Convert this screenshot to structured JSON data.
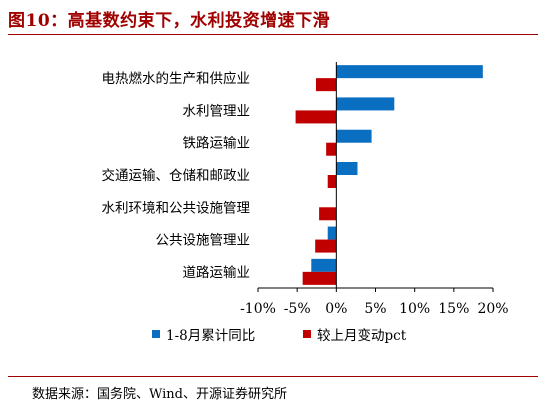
{
  "figure": {
    "title": "图10：高基数约束下，水利投资增速下滑",
    "source": "数据来源：国务院、Wind、开源证券研究所"
  },
  "colors": {
    "series1": "#0b6fc1",
    "series2": "#c00000",
    "axis": "#000000"
  },
  "chart_data": {
    "type": "bar",
    "orientation": "horizontal",
    "categories": [
      "电热燃水的生产和供应业",
      "水利管理业",
      "铁路运输业",
      "交通运输、仓储和邮政业",
      "水利环境和公共设施管理",
      "公共设施管理业",
      "道路运输业"
    ],
    "series": [
      {
        "name": "1-8月累计同比",
        "values": [
          18.7,
          7.4,
          4.5,
          2.7,
          0.0,
          -1.1,
          -3.2
        ]
      },
      {
        "name": "较上月变动pct",
        "values": [
          -2.6,
          -5.2,
          -1.3,
          -1.1,
          -2.2,
          -2.7,
          -4.3
        ]
      }
    ],
    "xlim": [
      -10,
      20
    ],
    "xticks": [
      -10,
      -5,
      0,
      5,
      10,
      15,
      20
    ],
    "xtick_labels": [
      "-10%",
      "-5%",
      "0%",
      "5%",
      "10%",
      "15%",
      "20%"
    ],
    "grid": false,
    "legend_position": "bottom"
  }
}
